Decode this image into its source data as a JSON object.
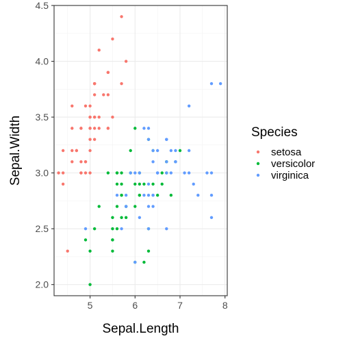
{
  "chart_data": {
    "type": "scatter",
    "xlabel": "Sepal.Length",
    "ylabel": "Sepal.Width",
    "xlim": [
      4.2,
      8.05
    ],
    "ylim": [
      1.9,
      4.5
    ],
    "x_ticks": [
      "5",
      "6",
      "7",
      "8"
    ],
    "y_ticks": [
      "2.0",
      "2.5",
      "3.0",
      "3.5",
      "4.0",
      "4.5"
    ],
    "grid": true,
    "legend": {
      "title": "Species",
      "placement": "right"
    },
    "series": [
      {
        "name": "setosa",
        "color": "#F8766D",
        "points": [
          [
            5.1,
            3.5
          ],
          [
            4.9,
            3.0
          ],
          [
            4.7,
            3.2
          ],
          [
            4.6,
            3.1
          ],
          [
            5.0,
            3.6
          ],
          [
            5.4,
            3.9
          ],
          [
            4.6,
            3.4
          ],
          [
            5.0,
            3.4
          ],
          [
            4.4,
            2.9
          ],
          [
            4.9,
            3.1
          ],
          [
            5.4,
            3.7
          ],
          [
            4.8,
            3.4
          ],
          [
            4.8,
            3.0
          ],
          [
            4.3,
            3.0
          ],
          [
            5.8,
            4.0
          ],
          [
            5.7,
            4.4
          ],
          [
            5.4,
            3.9
          ],
          [
            5.1,
            3.5
          ],
          [
            5.7,
            3.8
          ],
          [
            5.1,
            3.8
          ],
          [
            5.4,
            3.4
          ],
          [
            5.1,
            3.7
          ],
          [
            4.6,
            3.6
          ],
          [
            5.1,
            3.3
          ],
          [
            4.8,
            3.4
          ],
          [
            5.0,
            3.0
          ],
          [
            5.0,
            3.4
          ],
          [
            5.2,
            3.5
          ],
          [
            5.2,
            3.4
          ],
          [
            4.7,
            3.2
          ],
          [
            4.8,
            3.1
          ],
          [
            5.4,
            3.4
          ],
          [
            5.2,
            4.1
          ],
          [
            5.5,
            4.2
          ],
          [
            4.9,
            3.1
          ],
          [
            5.0,
            3.2
          ],
          [
            5.5,
            3.5
          ],
          [
            4.9,
            3.6
          ],
          [
            4.4,
            3.0
          ],
          [
            5.1,
            3.4
          ],
          [
            5.0,
            3.5
          ],
          [
            4.5,
            2.3
          ],
          [
            4.4,
            3.2
          ],
          [
            5.0,
            3.5
          ],
          [
            5.1,
            3.8
          ],
          [
            4.8,
            3.0
          ],
          [
            5.1,
            3.8
          ],
          [
            4.6,
            3.2
          ],
          [
            5.3,
            3.7
          ],
          [
            5.0,
            3.3
          ]
        ]
      },
      {
        "name": "versicolor",
        "color": "#00BA38",
        "points": [
          [
            7.0,
            3.2
          ],
          [
            6.4,
            3.2
          ],
          [
            6.9,
            3.1
          ],
          [
            5.5,
            2.3
          ],
          [
            6.5,
            2.8
          ],
          [
            5.7,
            2.8
          ],
          [
            6.3,
            3.3
          ],
          [
            4.9,
            2.4
          ],
          [
            6.6,
            2.9
          ],
          [
            5.2,
            2.7
          ],
          [
            5.0,
            2.0
          ],
          [
            5.9,
            3.0
          ],
          [
            6.0,
            2.2
          ],
          [
            6.1,
            2.9
          ],
          [
            5.6,
            2.9
          ],
          [
            6.7,
            3.1
          ],
          [
            5.6,
            3.0
          ],
          [
            5.8,
            2.7
          ],
          [
            6.2,
            2.2
          ],
          [
            5.6,
            2.5
          ],
          [
            5.9,
            3.2
          ],
          [
            6.1,
            2.8
          ],
          [
            6.3,
            2.5
          ],
          [
            6.1,
            2.8
          ],
          [
            6.4,
            2.9
          ],
          [
            6.6,
            3.0
          ],
          [
            6.8,
            2.8
          ],
          [
            6.7,
            3.0
          ],
          [
            6.0,
            2.9
          ],
          [
            5.7,
            2.6
          ],
          [
            5.5,
            2.4
          ],
          [
            5.5,
            2.4
          ],
          [
            5.8,
            2.7
          ],
          [
            6.0,
            2.7
          ],
          [
            5.4,
            3.0
          ],
          [
            6.0,
            3.4
          ],
          [
            6.7,
            3.1
          ],
          [
            6.3,
            2.3
          ],
          [
            5.6,
            3.0
          ],
          [
            5.5,
            2.5
          ],
          [
            5.5,
            2.6
          ],
          [
            6.1,
            3.0
          ],
          [
            5.8,
            2.6
          ],
          [
            5.0,
            2.3
          ],
          [
            5.6,
            2.7
          ],
          [
            5.7,
            3.0
          ],
          [
            5.7,
            2.9
          ],
          [
            6.2,
            2.9
          ],
          [
            5.1,
            2.5
          ],
          [
            5.7,
            2.8
          ]
        ]
      },
      {
        "name": "virginica",
        "color": "#619CFF",
        "points": [
          [
            6.3,
            3.3
          ],
          [
            5.8,
            2.7
          ],
          [
            7.1,
            3.0
          ],
          [
            6.3,
            2.9
          ],
          [
            6.5,
            3.0
          ],
          [
            7.6,
            3.0
          ],
          [
            4.9,
            2.5
          ],
          [
            7.3,
            2.9
          ],
          [
            6.7,
            2.5
          ],
          [
            7.2,
            3.6
          ],
          [
            6.5,
            3.2
          ],
          [
            6.4,
            2.7
          ],
          [
            6.8,
            3.0
          ],
          [
            5.7,
            2.5
          ],
          [
            5.8,
            2.8
          ],
          [
            6.4,
            3.2
          ],
          [
            6.5,
            3.0
          ],
          [
            7.7,
            3.8
          ],
          [
            7.7,
            2.6
          ],
          [
            6.0,
            2.2
          ],
          [
            6.9,
            3.2
          ],
          [
            5.6,
            2.8
          ],
          [
            7.7,
            2.8
          ],
          [
            6.3,
            2.7
          ],
          [
            6.7,
            3.3
          ],
          [
            7.2,
            3.2
          ],
          [
            6.2,
            2.8
          ],
          [
            6.1,
            3.0
          ],
          [
            6.4,
            2.8
          ],
          [
            7.2,
            3.0
          ],
          [
            7.4,
            2.8
          ],
          [
            7.9,
            3.8
          ],
          [
            6.4,
            2.8
          ],
          [
            6.3,
            2.8
          ],
          [
            6.1,
            2.6
          ],
          [
            7.7,
            3.0
          ],
          [
            6.3,
            3.4
          ],
          [
            6.4,
            3.1
          ],
          [
            6.0,
            3.0
          ],
          [
            6.9,
            3.1
          ],
          [
            6.7,
            3.1
          ],
          [
            6.9,
            3.1
          ],
          [
            5.8,
            2.7
          ],
          [
            6.8,
            3.2
          ],
          [
            6.7,
            3.3
          ],
          [
            6.7,
            3.0
          ],
          [
            6.3,
            2.5
          ],
          [
            6.5,
            3.0
          ],
          [
            6.2,
            3.4
          ],
          [
            5.9,
            3.0
          ]
        ]
      }
    ]
  }
}
